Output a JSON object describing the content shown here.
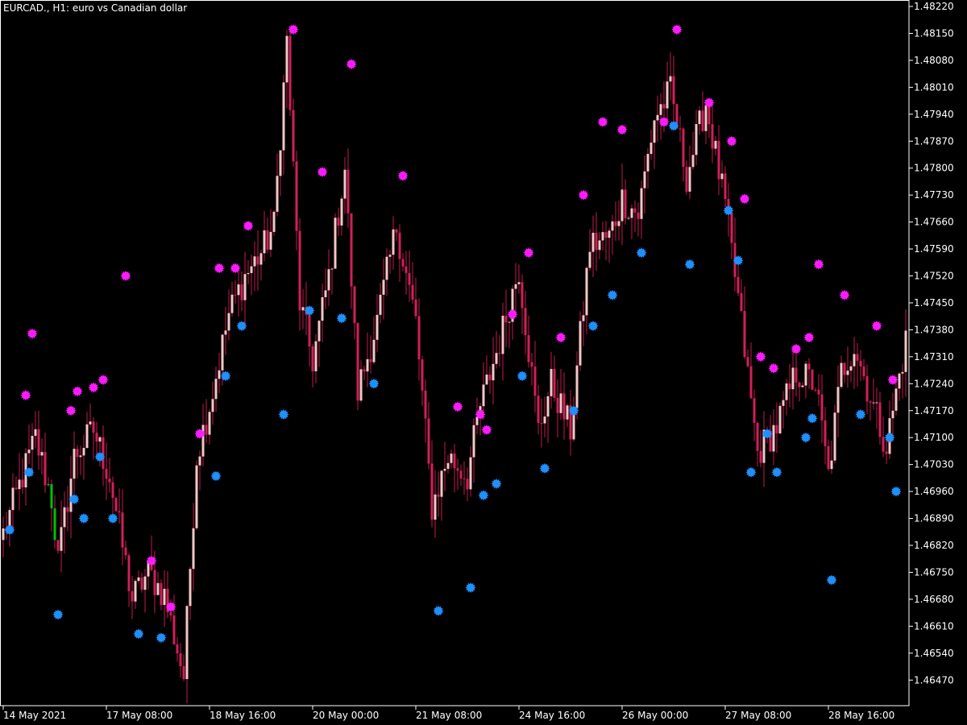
{
  "chart_title": "EURCAD., H1:  euro vs Canadian dollar",
  "colors": {
    "background": "#000000",
    "frame": "#ffffff",
    "candle_bull": "#f4c6c6",
    "candle_bear": "#d11f5a",
    "wick": "#c21a50",
    "marker_high": "#ff1aff",
    "marker_low": "#1e90ff",
    "first_bar": "#00c000"
  },
  "chart_data": {
    "type": "candlestick",
    "title": "EURCAD., H1:  euro vs Canadian dollar",
    "ylim": [
      1.464,
      1.4822
    ],
    "y_ticks": [
      "1.48220",
      "1.48150",
      "1.48080",
      "1.48010",
      "1.47940",
      "1.47870",
      "1.47800",
      "1.47730",
      "1.47660",
      "1.47590",
      "1.47520",
      "1.47450",
      "1.47380",
      "1.47310",
      "1.47240",
      "1.47170",
      "1.47100",
      "1.47030",
      "1.46960",
      "1.46890",
      "1.46820",
      "1.46750",
      "1.46680",
      "1.46610",
      "1.46540",
      "1.46470"
    ],
    "x_tick_labels": [
      "14 May 2021",
      "17 May 08:00",
      "18 May 16:00",
      "20 May 00:00",
      "21 May 08:00",
      "24 May 16:00",
      "26 May 00:00",
      "27 May 08:00",
      "28 May 16:00"
    ],
    "x_tick_bar_index": [
      0,
      32,
      64,
      96,
      128,
      160,
      192,
      224,
      256
    ],
    "grid": false,
    "close_anchors": [
      [
        0,
        1.4685
      ],
      [
        6,
        1.47
      ],
      [
        10,
        1.471
      ],
      [
        15,
        1.4694
      ],
      [
        17,
        1.4678
      ],
      [
        22,
        1.4705
      ],
      [
        28,
        1.4712
      ],
      [
        33,
        1.47
      ],
      [
        40,
        1.4668
      ],
      [
        45,
        1.4675
      ],
      [
        50,
        1.4669
      ],
      [
        56,
        1.4648
      ],
      [
        60,
        1.4705
      ],
      [
        65,
        1.4722
      ],
      [
        70,
        1.4742
      ],
      [
        75,
        1.4752
      ],
      [
        80,
        1.4758
      ],
      [
        84,
        1.4765
      ],
      [
        88,
        1.4813
      ],
      [
        92,
        1.4745
      ],
      [
        96,
        1.473
      ],
      [
        101,
        1.4752
      ],
      [
        106,
        1.478
      ],
      [
        110,
        1.4722
      ],
      [
        116,
        1.474
      ],
      [
        122,
        1.4765
      ],
      [
        128,
        1.474
      ],
      [
        133,
        1.4692
      ],
      [
        138,
        1.4705
      ],
      [
        144,
        1.47
      ],
      [
        148,
        1.4718
      ],
      [
        154,
        1.4735
      ],
      [
        160,
        1.4754
      ],
      [
        166,
        1.4712
      ],
      [
        170,
        1.4724
      ],
      [
        176,
        1.4712
      ],
      [
        182,
        1.476
      ],
      [
        188,
        1.4762
      ],
      [
        192,
        1.4772
      ],
      [
        197,
        1.4768
      ],
      [
        202,
        1.4793
      ],
      [
        207,
        1.48
      ],
      [
        212,
        1.4778
      ],
      [
        218,
        1.4797
      ],
      [
        224,
        1.477
      ],
      [
        228,
        1.4746
      ],
      [
        234,
        1.4706
      ],
      [
        240,
        1.4713
      ],
      [
        246,
        1.4727
      ],
      [
        252,
        1.4724
      ],
      [
        256,
        1.47
      ],
      [
        260,
        1.4727
      ],
      [
        264,
        1.4734
      ],
      [
        270,
        1.4718
      ],
      [
        274,
        1.4708
      ],
      [
        280,
        1.4735
      ]
    ],
    "candle_count": 281,
    "markers_high": [
      [
        7,
        1.4721
      ],
      [
        9,
        1.4737
      ],
      [
        21,
        1.4717
      ],
      [
        23,
        1.4722
      ],
      [
        28,
        1.4723
      ],
      [
        31,
        1.4725
      ],
      [
        38,
        1.4752
      ],
      [
        46,
        1.4678
      ],
      [
        52,
        1.4666
      ],
      [
        61,
        1.4711
      ],
      [
        67,
        1.4754
      ],
      [
        72,
        1.4754
      ],
      [
        76,
        1.4765
      ],
      [
        90,
        1.4816
      ],
      [
        99,
        1.4779
      ],
      [
        108,
        1.4807
      ],
      [
        124,
        1.4778
      ],
      [
        141,
        1.4718
      ],
      [
        148,
        1.4716
      ],
      [
        150,
        1.4712
      ],
      [
        158,
        1.4742
      ],
      [
        163,
        1.4758
      ],
      [
        173,
        1.4736
      ],
      [
        180,
        1.4773
      ],
      [
        186,
        1.4792
      ],
      [
        192,
        1.479
      ],
      [
        205,
        1.4792
      ],
      [
        209,
        1.4816
      ],
      [
        219,
        1.4797
      ],
      [
        226,
        1.4787
      ],
      [
        230,
        1.4772
      ],
      [
        235,
        1.4731
      ],
      [
        239,
        1.4728
      ],
      [
        246,
        1.4733
      ],
      [
        250,
        1.4736
      ],
      [
        253,
        1.4755
      ],
      [
        261,
        1.4747
      ],
      [
        271,
        1.4739
      ],
      [
        276,
        1.4725
      ]
    ],
    "markers_low": [
      [
        2,
        1.4686
      ],
      [
        8,
        1.4701
      ],
      [
        17,
        1.4664
      ],
      [
        22,
        1.4694
      ],
      [
        25,
        1.4689
      ],
      [
        30,
        1.4705
      ],
      [
        34,
        1.4689
      ],
      [
        42,
        1.4659
      ],
      [
        49,
        1.4658
      ],
      [
        66,
        1.47
      ],
      [
        69,
        1.4726
      ],
      [
        74,
        1.4739
      ],
      [
        87,
        1.4716
      ],
      [
        95,
        1.4743
      ],
      [
        105,
        1.4741
      ],
      [
        115,
        1.4724
      ],
      [
        135,
        1.4665
      ],
      [
        145,
        1.4671
      ],
      [
        149,
        1.4695
      ],
      [
        153,
        1.4698
      ],
      [
        161,
        1.4726
      ],
      [
        168,
        1.4702
      ],
      [
        177,
        1.4717
      ],
      [
        183,
        1.4739
      ],
      [
        189,
        1.4747
      ],
      [
        198,
        1.4758
      ],
      [
        208,
        1.4791
      ],
      [
        213,
        1.4755
      ],
      [
        225,
        1.4769
      ],
      [
        228,
        1.4756
      ],
      [
        237,
        1.4711
      ],
      [
        232,
        1.4701
      ],
      [
        240,
        1.4701
      ],
      [
        249,
        1.471
      ],
      [
        251,
        1.4715
      ],
      [
        257,
        1.4673
      ],
      [
        266,
        1.4716
      ],
      [
        275,
        1.471
      ],
      [
        277,
        1.4696
      ]
    ]
  }
}
